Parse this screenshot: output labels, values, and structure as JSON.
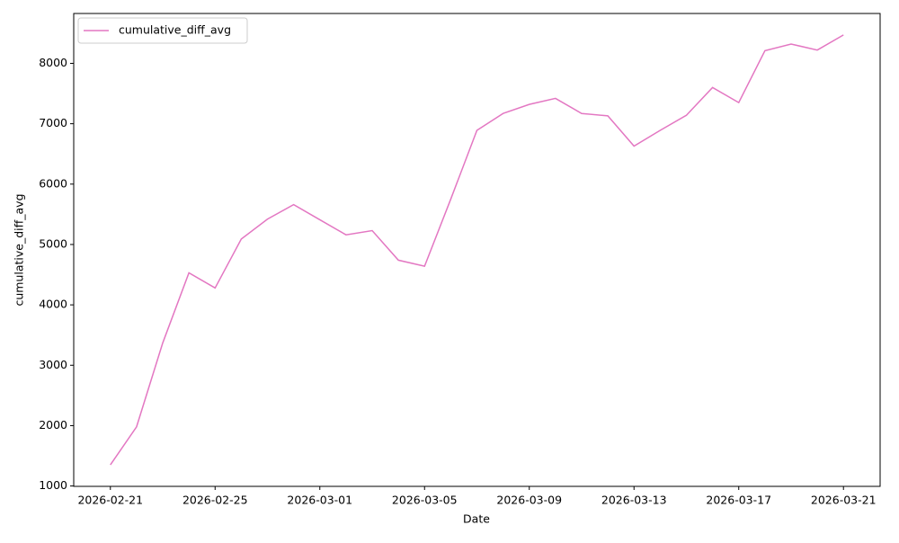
{
  "chart_data": {
    "type": "line",
    "xlabel": "Date",
    "ylabel": "cumulative_diff_avg",
    "x": [
      "2026-02-21",
      "2026-02-22",
      "2026-02-23",
      "2026-02-24",
      "2026-02-25",
      "2026-02-26",
      "2026-02-27",
      "2026-02-28",
      "2026-03-01",
      "2026-03-02",
      "2026-03-03",
      "2026-03-04",
      "2026-03-05",
      "2026-03-06",
      "2026-03-07",
      "2026-03-08",
      "2026-03-09",
      "2026-03-10",
      "2026-03-11",
      "2026-03-12",
      "2026-03-13",
      "2026-03-14",
      "2026-03-15",
      "2026-03-16",
      "2026-03-17",
      "2026-03-18",
      "2026-03-19",
      "2026-03-20",
      "2026-03-21"
    ],
    "series": [
      {
        "name": "cumulative_diff_avg",
        "color": "#e377c2",
        "values": [
          1350,
          1980,
          3370,
          4530,
          4280,
          5090,
          5420,
          5660,
          5410,
          5160,
          5230,
          4740,
          4640,
          5750,
          6890,
          7170,
          7320,
          7420,
          7170,
          7130,
          6630,
          6890,
          7140,
          7600,
          7350,
          8210,
          8320,
          8220,
          8470
        ]
      }
    ],
    "xlim": [
      "2026-02-19T14:24",
      "2026-03-22T09:36"
    ],
    "xticks": [
      "2026-02-21",
      "2026-02-25",
      "2026-03-01",
      "2026-03-05",
      "2026-03-09",
      "2026-03-13",
      "2026-03-17",
      "2026-03-21"
    ],
    "ylim": [
      994,
      8826
    ],
    "yticks": [
      1000,
      2000,
      3000,
      4000,
      5000,
      6000,
      7000,
      8000
    ],
    "legend": "upper left",
    "grid": false
  }
}
